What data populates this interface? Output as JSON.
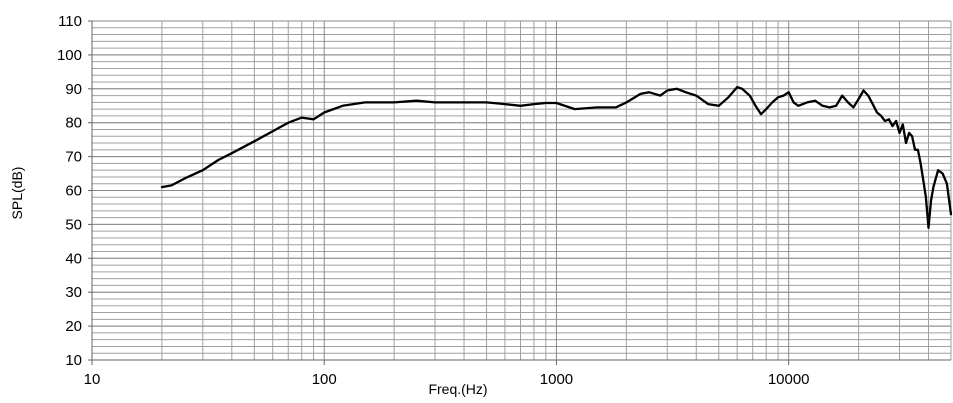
{
  "chart_data": {
    "type": "line",
    "title": "",
    "xlabel": "Freq.(Hz)",
    "ylabel": "SPL(dB)",
    "x_scale": "log",
    "xlim": [
      10,
      50000
    ],
    "ylim": [
      10,
      110
    ],
    "x_ticks": [
      10,
      100,
      1000,
      10000
    ],
    "x_tick_labels": [
      "10",
      "100",
      "1000",
      "10000"
    ],
    "y_ticks": [
      10,
      20,
      30,
      40,
      50,
      60,
      70,
      80,
      90,
      100,
      110
    ],
    "y_tick_labels": [
      "10",
      "20",
      "30",
      "40",
      "50",
      "60",
      "70",
      "80",
      "90",
      "100",
      "110"
    ],
    "grid": true,
    "minor_grid_y_step": 2,
    "line_color": "#000000",
    "grid_color": "#a0a0a0",
    "series": [
      {
        "x": [
          20,
          22,
          25,
          30,
          35,
          40,
          50,
          60,
          70,
          80,
          90,
          100,
          120,
          150,
          200,
          250,
          300,
          400,
          500,
          600,
          700,
          800,
          900,
          1000,
          1200,
          1500,
          1800,
          2000,
          2300,
          2500,
          2800,
          3000,
          3300,
          3600,
          4000,
          4500,
          5000,
          5500,
          6000,
          6300,
          6800,
          7200,
          7600,
          8000,
          8500,
          9000,
          9500,
          10000,
          10500,
          11000,
          12000,
          13000,
          14000,
          15000,
          16000,
          17000,
          18000,
          19000,
          20000,
          21000,
          22000,
          23000,
          24000,
          25000,
          26000,
          27000,
          28000,
          29000,
          30000,
          31000,
          32000,
          33000,
          34000,
          35000,
          36000,
          37000,
          38000,
          39000,
          40000,
          41000,
          42000,
          44000,
          46000,
          48000,
          50000
        ],
        "y": [
          61,
          61.5,
          63.5,
          66,
          69,
          71,
          74.5,
          77.5,
          80,
          81.5,
          81,
          83,
          85,
          86,
          86,
          86.5,
          86,
          86,
          86,
          85.5,
          85,
          85.5,
          85.8,
          85.8,
          84,
          84.5,
          84.5,
          86,
          88.5,
          89,
          88,
          89.5,
          90,
          89,
          88,
          85.5,
          85,
          87.5,
          90.5,
          90,
          88,
          85,
          82.5,
          84,
          86,
          87.5,
          88,
          89,
          86,
          85,
          86,
          86.5,
          85,
          84.5,
          85,
          88,
          86,
          84.5,
          87,
          89.5,
          88,
          85.5,
          83,
          82,
          80.5,
          81,
          79,
          80.5,
          77,
          79.5,
          74,
          77,
          76,
          72,
          72,
          68,
          63,
          58,
          49,
          57,
          61,
          66,
          65,
          62,
          53
        ]
      }
    ]
  }
}
